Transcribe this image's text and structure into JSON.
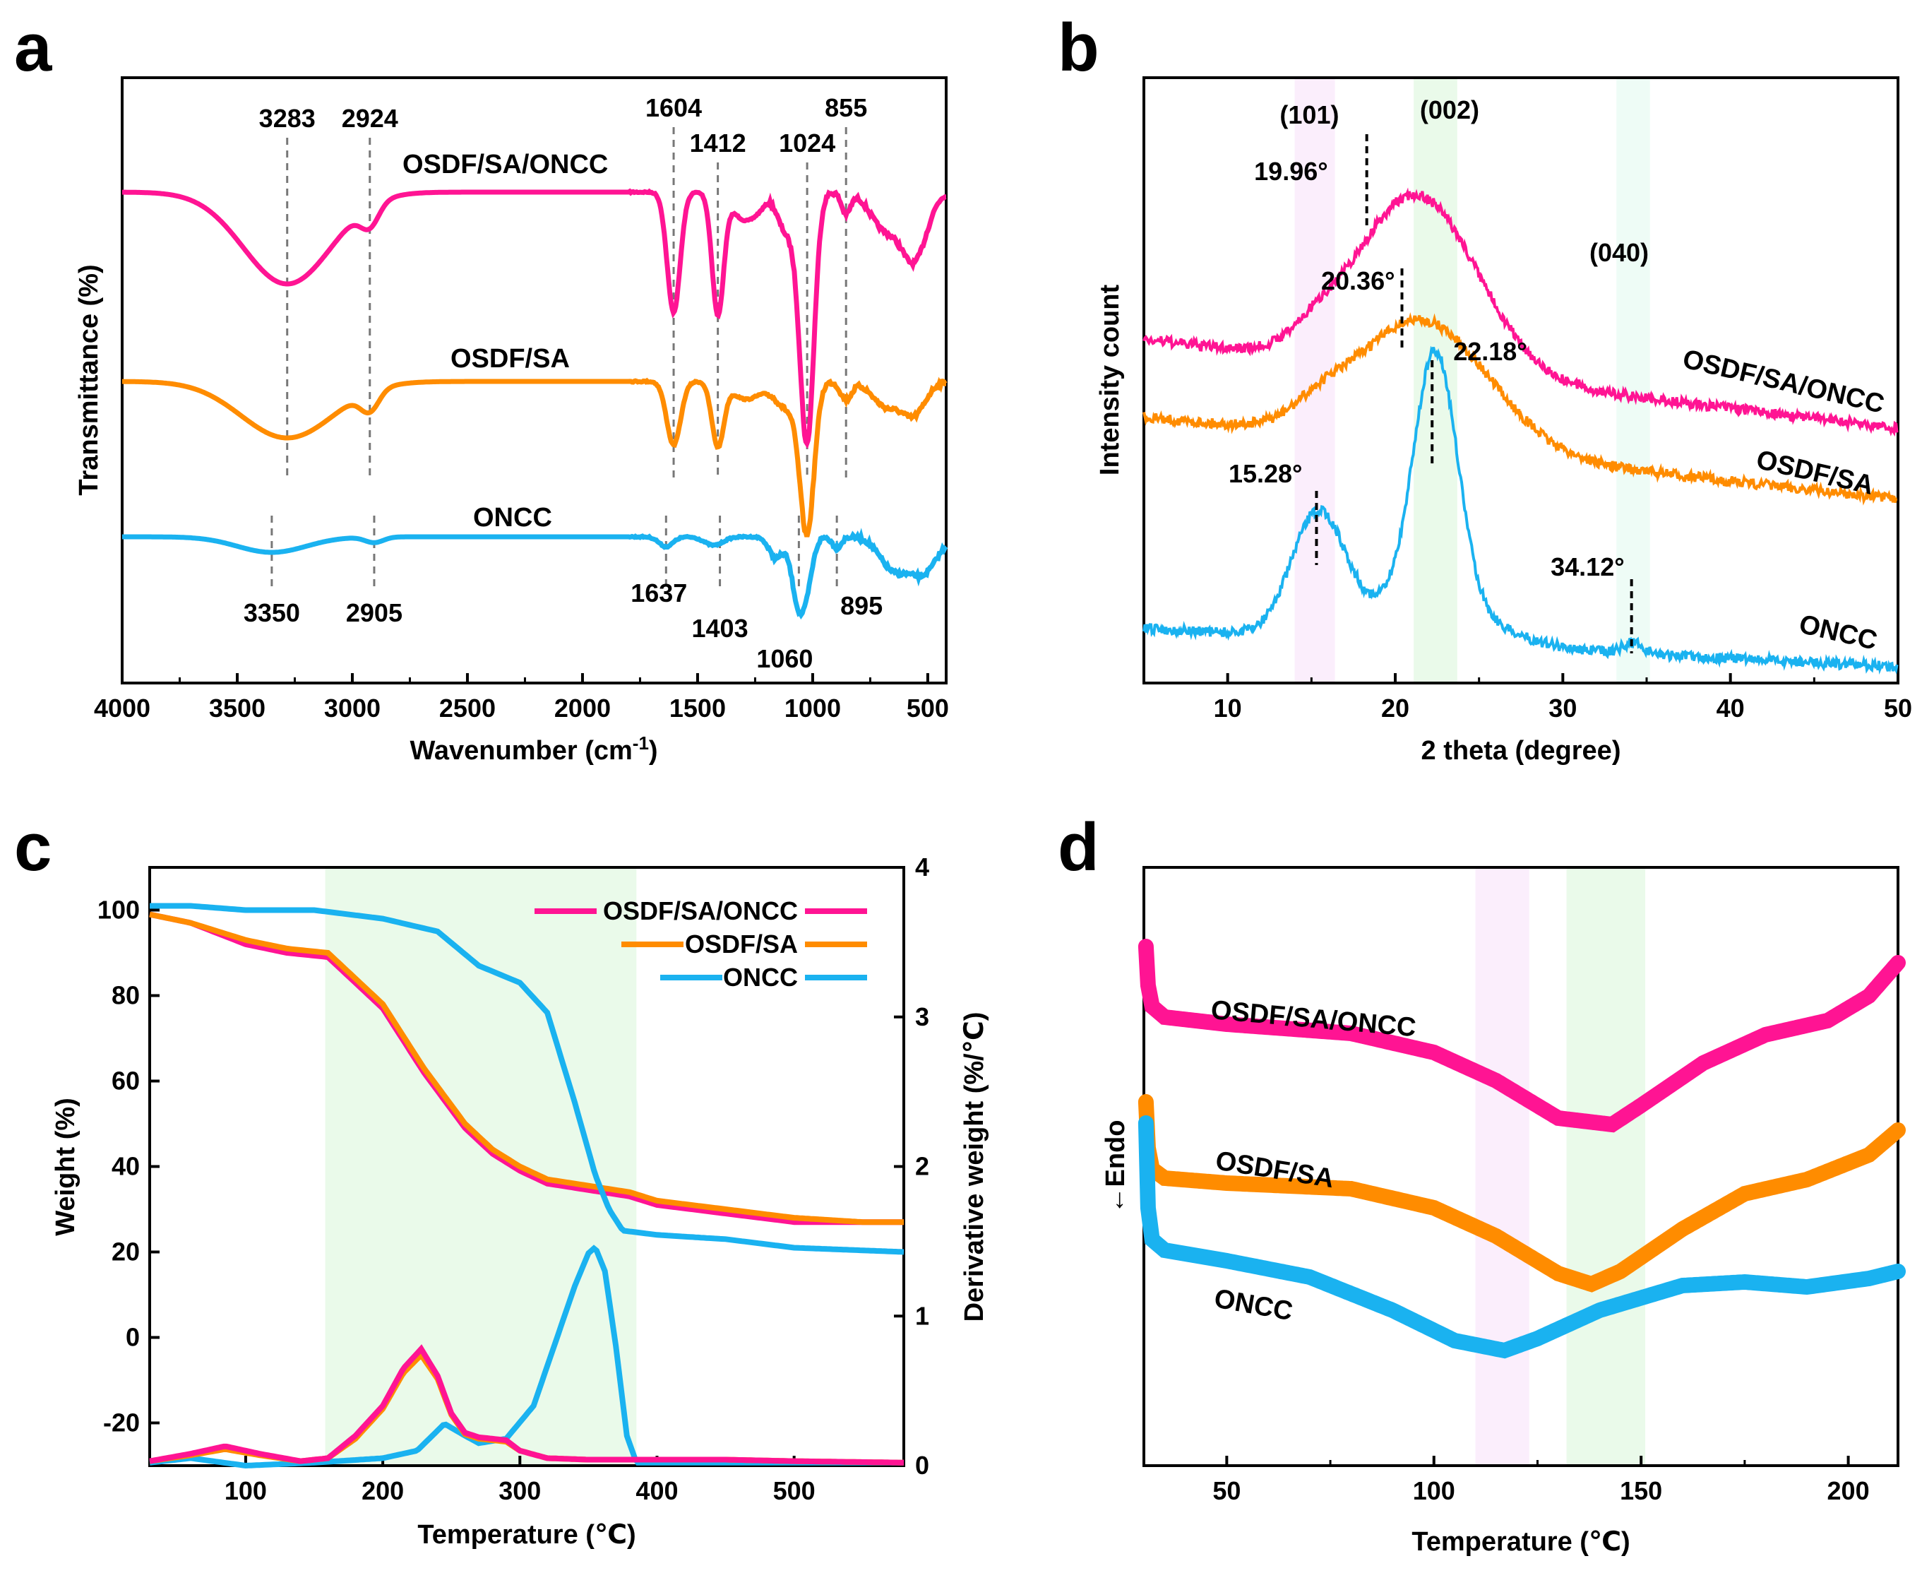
{
  "colors": {
    "osdf_sa_oncc": "#ff1493",
    "osdf_sa": "#ff8c00",
    "oncc": "#1ab2f0"
  },
  "chart_data": [
    {
      "panel": "a",
      "type": "line",
      "title": "",
      "xlabel": "Wavenumber (cm",
      "xlabel_sup": "-1",
      "xlabel_close": ")",
      "ylabel": "Transmittance (%)",
      "xlim": [
        4000,
        420
      ],
      "x_ticks": [
        "4000",
        "3500",
        "3000",
        "2500",
        "2000",
        "1500",
        "1000",
        "500"
      ],
      "series": [
        {
          "name": "OSDF/SA/ONCC",
          "color": "#ff1493"
        },
        {
          "name": "OSDF/SA",
          "color": "#ff8c00"
        },
        {
          "name": "ONCC",
          "color": "#1ab2f0"
        }
      ],
      "annotations": [
        {
          "text": "3283",
          "x": 3283,
          "series": "upper"
        },
        {
          "text": "2924",
          "x": 2924,
          "series": "upper"
        },
        {
          "text": "1604",
          "x": 1604,
          "series": "upper"
        },
        {
          "text": "1412",
          "x": 1412,
          "series": "upper"
        },
        {
          "text": "1024",
          "x": 1024,
          "series": "upper"
        },
        {
          "text": "855",
          "x": 855,
          "series": "upper"
        },
        {
          "text": "3350",
          "x": 3350,
          "series": "lower"
        },
        {
          "text": "2905",
          "x": 2905,
          "series": "lower"
        },
        {
          "text": "1637",
          "x": 1637,
          "series": "lower"
        },
        {
          "text": "1403",
          "x": 1403,
          "series": "lower"
        },
        {
          "text": "1060",
          "x": 1060,
          "series": "lower"
        },
        {
          "text": "895",
          "x": 895,
          "series": "lower"
        }
      ]
    },
    {
      "panel": "b",
      "type": "line",
      "title": "",
      "xlabel": "2 theta (degree)",
      "ylabel": "Intensity count",
      "xlim": [
        5,
        50
      ],
      "x_ticks": [
        "10",
        "20",
        "30",
        "40",
        "50"
      ],
      "series": [
        {
          "name": "OSDF/SA/ONCC",
          "color": "#ff1493"
        },
        {
          "name": "OSDF/SA",
          "color": "#ff8c00"
        },
        {
          "name": "ONCC",
          "color": "#1ab2f0"
        }
      ],
      "planes": [
        {
          "text": "(101)",
          "x": 15.3
        },
        {
          "text": "(002)",
          "x": 22.4
        },
        {
          "text": "(040)",
          "x": 34.2
        }
      ],
      "peak_labels": [
        {
          "text": "19.96°",
          "x": 18.3
        },
        {
          "text": "20.36°",
          "x": 20.4
        },
        {
          "text": "22.18°",
          "x": 22.2
        },
        {
          "text": "15.28°",
          "x": 15.3
        },
        {
          "text": "34.12°",
          "x": 34.1
        }
      ]
    },
    {
      "panel": "c",
      "type": "line",
      "title": "",
      "xlabel": "Temperature (℃)",
      "ylabel": "Weight (%)",
      "ylabel_right": "Derivative weight (%/℃)",
      "xlim": [
        30,
        580
      ],
      "ylim": [
        -30,
        110
      ],
      "ylim_right": [
        0,
        4
      ],
      "x_ticks": [
        "100",
        "200",
        "300",
        "400",
        "500"
      ],
      "y_ticks": [
        "-20",
        "0",
        "20",
        "40",
        "60",
        "80",
        "100"
      ],
      "y_ticks_right": [
        "0",
        "1",
        "2",
        "3",
        "4"
      ],
      "legend_location": "top-right",
      "series": [
        {
          "name": "OSDF/SA/ONCC",
          "color": "#ff1493",
          "tg_x": [
            30,
            60,
            100,
            130,
            160,
            200,
            230,
            260,
            280,
            300,
            320,
            340,
            360,
            380,
            400,
            450,
            500,
            550,
            580
          ],
          "tg_y": [
            99,
            97,
            92,
            90,
            89,
            77,
            62,
            49,
            43,
            39,
            36,
            35,
            34,
            33,
            31,
            29,
            27,
            27,
            27
          ],
          "dtg_x": [
            30,
            60,
            85,
            110,
            140,
            160,
            180,
            200,
            215,
            228,
            240,
            250,
            260,
            270,
            290,
            300,
            320,
            350,
            400,
            450,
            500,
            580
          ],
          "dtg_y": [
            0.03,
            0.08,
            0.13,
            0.08,
            0.03,
            0.05,
            0.2,
            0.4,
            0.65,
            0.78,
            0.6,
            0.35,
            0.22,
            0.19,
            0.17,
            0.1,
            0.05,
            0.04,
            0.04,
            0.04,
            0.03,
            0.02
          ]
        },
        {
          "name": "OSDF/SA",
          "color": "#ff8c00",
          "tg_x": [
            30,
            60,
            100,
            130,
            160,
            200,
            230,
            260,
            280,
            300,
            320,
            340,
            360,
            380,
            400,
            450,
            500,
            550,
            580
          ],
          "tg_y": [
            99,
            97,
            93,
            91,
            90,
            78,
            63,
            50,
            44,
            40,
            37,
            36,
            35,
            34,
            32,
            30,
            28,
            27,
            27
          ],
          "dtg_x": [
            30,
            60,
            85,
            110,
            140,
            160,
            180,
            200,
            215,
            228,
            240,
            250,
            260,
            270,
            290,
            300,
            320,
            350,
            400,
            450,
            500,
            580
          ],
          "dtg_y": [
            0.03,
            0.07,
            0.11,
            0.07,
            0.03,
            0.05,
            0.18,
            0.38,
            0.62,
            0.74,
            0.58,
            0.34,
            0.21,
            0.18,
            0.16,
            0.1,
            0.05,
            0.04,
            0.04,
            0.04,
            0.03,
            0.02
          ]
        },
        {
          "name": "ONCC",
          "color": "#1ab2f0",
          "tg_x": [
            30,
            60,
            100,
            150,
            200,
            240,
            270,
            300,
            320,
            340,
            355,
            365,
            375,
            400,
            450,
            500,
            580
          ],
          "tg_y": [
            101,
            101,
            100,
            100,
            98,
            95,
            87,
            83,
            76,
            55,
            38,
            30,
            25,
            24,
            23,
            21,
            20
          ],
          "dtg_x": [
            30,
            60,
            100,
            150,
            200,
            225,
            245,
            260,
            270,
            290,
            310,
            325,
            340,
            350,
            355,
            362,
            370,
            378,
            385,
            400,
            450,
            500,
            580
          ],
          "dtg_y": [
            0.02,
            0.05,
            0.0,
            0.02,
            0.05,
            0.1,
            0.28,
            0.2,
            0.15,
            0.18,
            0.4,
            0.8,
            1.2,
            1.42,
            1.46,
            1.3,
            0.8,
            0.2,
            0.02,
            0.02,
            0.02,
            0.02,
            0.02
          ]
        }
      ]
    },
    {
      "panel": "d",
      "type": "line",
      "title": "",
      "xlabel": "Temperature (℃)",
      "ylabel": "←Endo",
      "xlim": [
        30,
        212
      ],
      "x_ticks": [
        "50",
        "100",
        "150",
        "200"
      ],
      "series": [
        {
          "name": "OSDF/SA/ONCC",
          "color": "#ff1493"
        },
        {
          "name": "OSDF/SA",
          "color": "#ff8c00"
        },
        {
          "name": "ONCC",
          "color": "#1ab2f0"
        }
      ]
    }
  ],
  "panel_letters": {
    "a": "a",
    "b": "b",
    "c": "c",
    "d": "d"
  }
}
